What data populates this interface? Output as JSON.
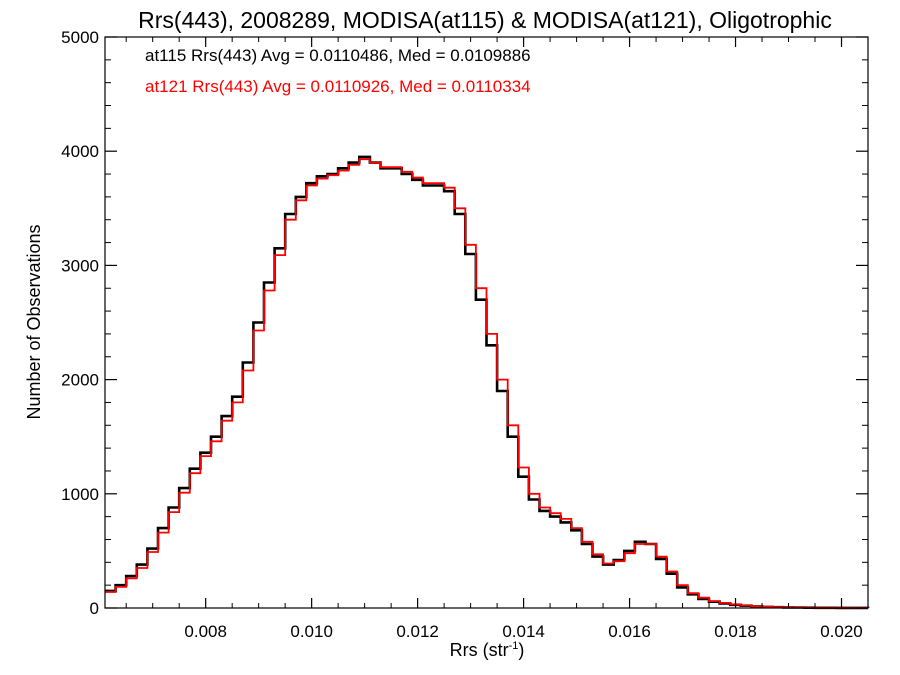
{
  "chart_data": {
    "type": "line",
    "title": "Rrs(443), 2008289, MODISA(at115) & MODISA(at121), Oligotrophic",
    "xlabel_main": "Rrs (str",
    "xlabel_sup": "-1",
    "xlabel_close": ")",
    "ylabel": "Number of Observations",
    "xlim": [
      0.0061,
      0.0205
    ],
    "ylim": [
      0,
      5000
    ],
    "xticks": [
      0.008,
      0.01,
      0.012,
      0.014,
      0.016,
      0.018,
      0.02
    ],
    "xtick_labels": [
      "0.008",
      "0.010",
      "0.012",
      "0.014",
      "0.016",
      "0.018",
      "0.020"
    ],
    "yticks": [
      0,
      1000,
      2000,
      3000,
      4000,
      5000
    ],
    "ytick_labels": [
      "0",
      "1000",
      "2000",
      "3000",
      "4000",
      "5000"
    ],
    "step_style": "histogram-steps",
    "annotations": [
      {
        "text": "at115 Rrs(443) Avg = 0.0110486, Med = 0.0109886",
        "color": "#000000"
      },
      {
        "text": "at121 Rrs(443) Avg = 0.0110926, Med = 0.0110334",
        "color": "#ff0000"
      }
    ],
    "series": [
      {
        "color": "#000000",
        "x": [
          0.0061,
          0.0063,
          0.0065,
          0.0067,
          0.0069,
          0.0071,
          0.0073,
          0.0075,
          0.0077,
          0.0079,
          0.0081,
          0.0083,
          0.0085,
          0.0087,
          0.0089,
          0.0091,
          0.0093,
          0.0095,
          0.0097,
          0.0099,
          0.0101,
          0.0103,
          0.0105,
          0.0107,
          0.0109,
          0.0111,
          0.0113,
          0.0115,
          0.0117,
          0.0119,
          0.0121,
          0.0123,
          0.0125,
          0.0127,
          0.0129,
          0.0131,
          0.0133,
          0.0135,
          0.0137,
          0.0139,
          0.0141,
          0.0143,
          0.0145,
          0.0147,
          0.0149,
          0.0151,
          0.0153,
          0.0155,
          0.0157,
          0.0159,
          0.0161,
          0.0163,
          0.0165,
          0.0167,
          0.0169,
          0.0171,
          0.0173,
          0.0175,
          0.0177,
          0.0179,
          0.0181,
          0.0183,
          0.0185,
          0.0187,
          0.0189,
          0.0191,
          0.0193,
          0.0195,
          0.0197,
          0.0199,
          0.0201,
          0.0203,
          0.0205
        ],
        "y": [
          150,
          200,
          280,
          380,
          520,
          700,
          880,
          1050,
          1220,
          1360,
          1500,
          1680,
          1850,
          2150,
          2500,
          2850,
          3150,
          3450,
          3600,
          3720,
          3780,
          3800,
          3850,
          3900,
          3950,
          3900,
          3850,
          3850,
          3800,
          3750,
          3700,
          3700,
          3650,
          3450,
          3100,
          2700,
          2300,
          1900,
          1500,
          1150,
          950,
          850,
          800,
          750,
          680,
          560,
          450,
          380,
          420,
          500,
          580,
          560,
          430,
          300,
          180,
          120,
          80,
          55,
          40,
          28,
          20,
          14,
          10,
          7,
          5,
          4,
          3,
          2,
          2,
          1,
          1,
          1,
          0
        ]
      },
      {
        "color": "#ff0000",
        "x": [
          0.0061,
          0.0063,
          0.0065,
          0.0067,
          0.0069,
          0.0071,
          0.0073,
          0.0075,
          0.0077,
          0.0079,
          0.0081,
          0.0083,
          0.0085,
          0.0087,
          0.0089,
          0.0091,
          0.0093,
          0.0095,
          0.0097,
          0.0099,
          0.0101,
          0.0103,
          0.0105,
          0.0107,
          0.0109,
          0.0111,
          0.0113,
          0.0115,
          0.0117,
          0.0119,
          0.0121,
          0.0123,
          0.0125,
          0.0127,
          0.0129,
          0.0131,
          0.0133,
          0.0135,
          0.0137,
          0.0139,
          0.0141,
          0.0143,
          0.0145,
          0.0147,
          0.0149,
          0.0151,
          0.0153,
          0.0155,
          0.0157,
          0.0159,
          0.0161,
          0.0163,
          0.0165,
          0.0167,
          0.0169,
          0.0171,
          0.0173,
          0.0175,
          0.0177,
          0.0179,
          0.0181,
          0.0183,
          0.0185,
          0.0187,
          0.0189,
          0.0191,
          0.0193,
          0.0195,
          0.0197,
          0.0199,
          0.0201,
          0.0203,
          0.0205
        ],
        "y": [
          140,
          185,
          260,
          350,
          490,
          660,
          840,
          1010,
          1180,
          1330,
          1460,
          1640,
          1800,
          2080,
          2430,
          2780,
          3090,
          3400,
          3570,
          3700,
          3760,
          3790,
          3830,
          3880,
          3930,
          3900,
          3860,
          3860,
          3820,
          3770,
          3720,
          3720,
          3680,
          3500,
          3180,
          2800,
          2400,
          2000,
          1600,
          1230,
          1000,
          880,
          830,
          780,
          700,
          580,
          470,
          390,
          410,
          480,
          560,
          560,
          450,
          320,
          200,
          130,
          90,
          60,
          45,
          32,
          22,
          15,
          11,
          8,
          6,
          4,
          3,
          2,
          2,
          1,
          1,
          1,
          0
        ]
      }
    ]
  }
}
